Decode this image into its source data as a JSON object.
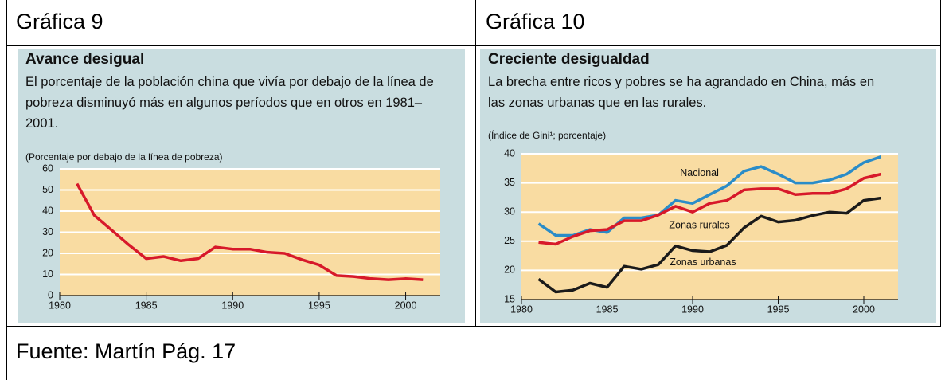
{
  "table": {
    "headers": [
      "Gráfica 9",
      "Gráfica 10"
    ],
    "footer": "Fuente: Martín Pág. 17"
  },
  "chart_data": [
    {
      "type": "line",
      "title": "Avance desigual",
      "subtitle": "El porcentaje de la población china que vivía por debajo de la línea de pobreza disminuyó más en algunos períodos que en otros en 1981–2001.",
      "y_label": "(Porcentaje por debajo de la línea de pobreza)",
      "x": [
        1981,
        1982,
        1983,
        1984,
        1985,
        1986,
        1987,
        1988,
        1989,
        1990,
        1991,
        1992,
        1993,
        1994,
        1995,
        1996,
        1997,
        1998,
        1999,
        2000,
        2001
      ],
      "series": [
        {
          "name": null,
          "color": "#d7192a",
          "values": [
            53,
            38,
            31,
            24,
            17.5,
            18.5,
            16.5,
            17.5,
            23,
            22,
            22,
            20.5,
            20,
            17,
            14.5,
            9.5,
            9,
            8,
            7.5,
            8,
            7.5
          ]
        }
      ],
      "xlim": [
        1980,
        2002
      ],
      "xticks": [
        1980,
        1985,
        1990,
        1995,
        2000
      ],
      "ylim": [
        0,
        60
      ],
      "yticks": [
        0,
        10,
        20,
        30,
        40,
        50,
        60
      ],
      "grid": true
    },
    {
      "type": "line",
      "title": "Creciente desigualdad",
      "subtitle": "La brecha entre ricos y pobres se ha agrandado en China, más en las zonas urbanas que en las rurales.",
      "y_label": "(Índice de Gini¹; porcentaje)",
      "x": [
        1981,
        1982,
        1983,
        1984,
        1985,
        1986,
        1987,
        1988,
        1989,
        1990,
        1991,
        1992,
        1993,
        1994,
        1995,
        1996,
        1997,
        1998,
        1999,
        2000,
        2001
      ],
      "series": [
        {
          "name": "Nacional",
          "color": "#2a8cc8",
          "values": [
            28,
            26,
            26,
            27,
            26.5,
            29,
            29,
            29.5,
            32,
            31.5,
            33,
            34.5,
            37,
            37.8,
            36.5,
            35,
            35,
            35.5,
            36.5,
            38.5,
            39.5
          ]
        },
        {
          "name": "Zonas rurales",
          "color": "#d7192a",
          "values": [
            24.8,
            24.5,
            25.8,
            26.8,
            27,
            28.5,
            28.5,
            29.5,
            31,
            30,
            31.5,
            32,
            33.8,
            34,
            34,
            33,
            33.2,
            33.2,
            34,
            35.8,
            36.5
          ]
        },
        {
          "name": "Zonas urbanas",
          "color": "#1a1a1a",
          "values": [
            18.5,
            16.3,
            16.6,
            17.8,
            17.1,
            20.7,
            20.2,
            21,
            24.2,
            23.4,
            23.2,
            24.3,
            27.3,
            29.3,
            28.3,
            28.6,
            29.4,
            30,
            29.8,
            32,
            32.4
          ]
        }
      ],
      "xlim": [
        1980,
        2002
      ],
      "xticks": [
        1980,
        1985,
        1990,
        1995,
        2000
      ],
      "ylim": [
        15,
        40
      ],
      "yticks": [
        15,
        20,
        25,
        30,
        35,
        40
      ],
      "grid": true
    }
  ]
}
